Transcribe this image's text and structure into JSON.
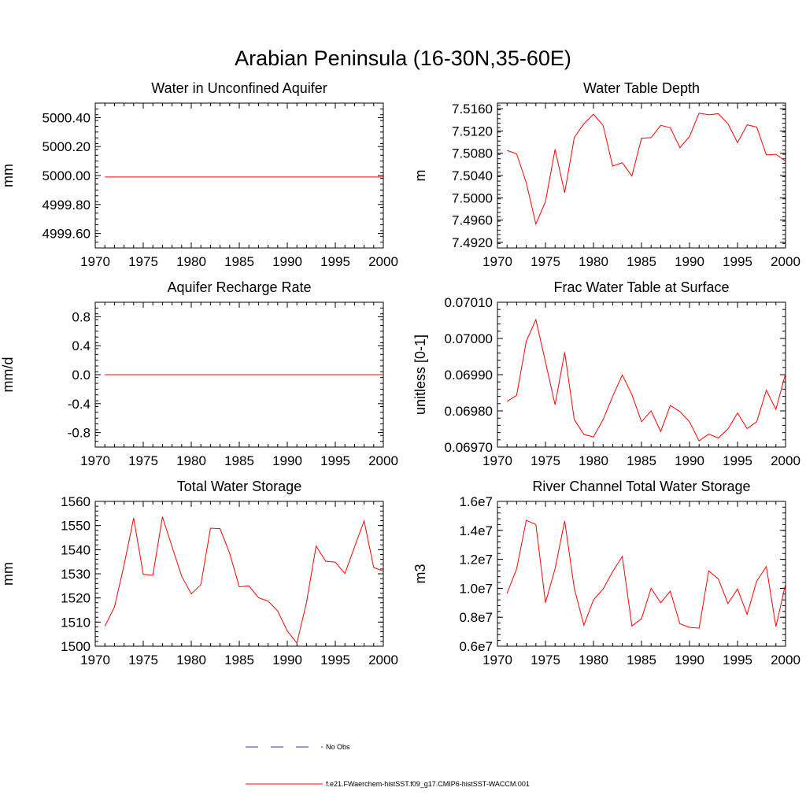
{
  "page": {
    "title": "Arabian Peninsula (16-30N,35-60E)"
  },
  "legend": {
    "entries": [
      {
        "label": "No Obs",
        "color": "#3333aa",
        "dash": "dashed"
      },
      {
        "label": "f.e21.FWaerchem-histSST.f09_g17.CMIP6-histSST-WACCM.001",
        "color": "#ff0000",
        "dash": "solid"
      }
    ]
  },
  "chart_data": [
    {
      "type": "line",
      "title": "Water in Unconfined Aquifer",
      "ylabel": "mm",
      "xlim": [
        1970,
        2000
      ],
      "ylim": [
        4999.5,
        5000.5
      ],
      "xticks": [
        1970,
        1975,
        1980,
        1985,
        1990,
        1995,
        2000
      ],
      "yticks": [
        4999.6,
        4999.8,
        5000.0,
        5000.2,
        5000.4
      ],
      "ytick_labels": [
        "4999.60",
        "4999.80",
        "5000.00",
        "5000.20",
        "5000.40"
      ],
      "x": [
        1971,
        1972,
        1973,
        1974,
        1975,
        1976,
        1977,
        1978,
        1979,
        1980,
        1981,
        1982,
        1983,
        1984,
        1985,
        1986,
        1987,
        1988,
        1989,
        1990,
        1991,
        1992,
        1993,
        1994,
        1995,
        1996,
        1997,
        1998,
        1999,
        2000
      ],
      "series": [
        {
          "color": "#ff0000",
          "values": [
            4999.99,
            4999.99,
            4999.99,
            4999.99,
            4999.99,
            4999.99,
            4999.99,
            4999.99,
            4999.99,
            4999.99,
            4999.99,
            4999.99,
            4999.99,
            4999.99,
            4999.99,
            4999.99,
            4999.99,
            4999.99,
            4999.99,
            4999.99,
            4999.99,
            4999.99,
            4999.99,
            4999.99,
            4999.99,
            4999.99,
            4999.99,
            4999.99,
            4999.99,
            4999.99
          ]
        }
      ]
    },
    {
      "type": "line",
      "title": "Water Table Depth",
      "ylabel": "m",
      "xlim": [
        1970,
        2000
      ],
      "ylim": [
        7.491,
        7.517
      ],
      "xticks": [
        1970,
        1975,
        1980,
        1985,
        1990,
        1995,
        2000
      ],
      "yticks": [
        7.492,
        7.496,
        7.5,
        7.504,
        7.508,
        7.512,
        7.516
      ],
      "ytick_labels": [
        "7.4920",
        "7.4960",
        "7.5000",
        "7.5040",
        "7.5080",
        "7.5120",
        "7.5160"
      ],
      "x": [
        1971,
        1972,
        1973,
        1974,
        1975,
        1976,
        1977,
        1978,
        1979,
        1980,
        1981,
        1982,
        1983,
        1984,
        1985,
        1986,
        1987,
        1988,
        1989,
        1990,
        1991,
        1992,
        1993,
        1994,
        1995,
        1996,
        1997,
        1998,
        1999,
        2000
      ],
      "series": [
        {
          "color": "#ff0000",
          "values": [
            7.5085,
            7.5079,
            7.5027,
            7.4953,
            7.4993,
            7.5087,
            7.5009,
            7.5108,
            7.5133,
            7.515,
            7.513,
            7.5057,
            7.5063,
            7.5039,
            7.5107,
            7.5108,
            7.513,
            7.5126,
            7.509,
            7.511,
            7.5152,
            7.5149,
            7.5151,
            7.5133,
            7.5099,
            7.5131,
            7.5127,
            7.5077,
            7.5078,
            7.5066
          ]
        }
      ]
    },
    {
      "type": "line",
      "title": "Aquifer Recharge Rate",
      "ylabel": "mm/d",
      "xlim": [
        1970,
        2000
      ],
      "ylim": [
        -1.0,
        1.0
      ],
      "xticks": [
        1970,
        1975,
        1980,
        1985,
        1990,
        1995,
        2000
      ],
      "yticks": [
        -0.8,
        -0.4,
        0.0,
        0.4,
        0.8
      ],
      "ytick_labels": [
        "-0.8",
        "-0.4",
        "0.0",
        "0.4",
        "0.8"
      ],
      "x": [
        1971,
        1972,
        1973,
        1974,
        1975,
        1976,
        1977,
        1978,
        1979,
        1980,
        1981,
        1982,
        1983,
        1984,
        1985,
        1986,
        1987,
        1988,
        1989,
        1990,
        1991,
        1992,
        1993,
        1994,
        1995,
        1996,
        1997,
        1998,
        1999,
        2000
      ],
      "series": [
        {
          "color": "#ff0000",
          "values": [
            0,
            0,
            0,
            0,
            0,
            0,
            0,
            0,
            0,
            0,
            0,
            0,
            0,
            0,
            0,
            0,
            0,
            0,
            0,
            0,
            0,
            0,
            0,
            0,
            0,
            0,
            0,
            0,
            0,
            0
          ]
        }
      ]
    },
    {
      "type": "line",
      "title": "Frac Water Table at Surface",
      "ylabel": "unitless [0-1]",
      "xlim": [
        1970,
        2000
      ],
      "ylim": [
        0.0697,
        0.0701
      ],
      "xticks": [
        1970,
        1975,
        1980,
        1985,
        1990,
        1995,
        2000
      ],
      "yticks": [
        0.0697,
        0.0698,
        0.0699,
        0.07,
        0.0701
      ],
      "ytick_labels": [
        "0.06970",
        "0.06980",
        "0.06990",
        "0.07000",
        "0.07010"
      ],
      "x": [
        1971,
        1972,
        1973,
        1974,
        1975,
        1976,
        1977,
        1978,
        1979,
        1980,
        1981,
        1982,
        1983,
        1984,
        1985,
        1986,
        1987,
        1988,
        1989,
        1990,
        1991,
        1992,
        1993,
        1994,
        1995,
        1996,
        1997,
        1998,
        1999,
        2000
      ],
      "series": [
        {
          "color": "#ff0000",
          "values": [
            0.069826,
            0.069843,
            0.069992,
            0.070052,
            0.069935,
            0.069817,
            0.069962,
            0.069776,
            0.069735,
            0.069728,
            0.069776,
            0.06984,
            0.069899,
            0.069845,
            0.06977,
            0.0698,
            0.069743,
            0.069815,
            0.069798,
            0.06977,
            0.069717,
            0.069736,
            0.069725,
            0.06975,
            0.069794,
            0.069751,
            0.06977,
            0.069857,
            0.069804,
            0.069903
          ]
        }
      ]
    },
    {
      "type": "line",
      "title": "Total Water Storage",
      "ylabel": "mm",
      "xlim": [
        1970,
        2000
      ],
      "ylim": [
        1500,
        1560
      ],
      "xticks": [
        1970,
        1975,
        1980,
        1985,
        1990,
        1995,
        2000
      ],
      "yticks": [
        1500,
        1510,
        1520,
        1530,
        1540,
        1550,
        1560
      ],
      "ytick_labels": [
        "1500",
        "1510",
        "1520",
        "1530",
        "1540",
        "1550",
        "1560"
      ],
      "x": [
        1971,
        1972,
        1973,
        1974,
        1975,
        1976,
        1977,
        1978,
        1979,
        1980,
        1981,
        1982,
        1983,
        1984,
        1985,
        1986,
        1987,
        1988,
        1989,
        1990,
        1991,
        1992,
        1993,
        1994,
        1995,
        1996,
        1997,
        1998,
        1999,
        2000
      ],
      "series": [
        {
          "color": "#ff0000",
          "values": [
            1508.3,
            1516.2,
            1533.6,
            1553.1,
            1529.8,
            1529.4,
            1553.6,
            1541.2,
            1529.0,
            1521.7,
            1525.5,
            1548.9,
            1548.7,
            1538.5,
            1524.6,
            1525.0,
            1520.1,
            1518.7,
            1514.6,
            1506.3,
            1501.3,
            1518.1,
            1541.5,
            1535.2,
            1534.8,
            1530.1,
            1541.1,
            1551.9,
            1532.6,
            1531.1
          ]
        }
      ]
    },
    {
      "type": "line",
      "title": "River Channel Total Water Storage",
      "ylabel": "m3",
      "xlim": [
        1970,
        2000
      ],
      "ylim": [
        6000000,
        16000000
      ],
      "xticks": [
        1970,
        1975,
        1980,
        1985,
        1990,
        1995,
        2000
      ],
      "yticks": [
        6000000,
        8000000,
        10000000,
        12000000,
        14000000,
        16000000
      ],
      "ytick_labels": [
        "0.6e7",
        "0.8e7",
        "1.0e7",
        "1.2e7",
        "1.4e7",
        "1.6e7"
      ],
      "x": [
        1971,
        1972,
        1973,
        1974,
        1975,
        1976,
        1977,
        1978,
        1979,
        1980,
        1981,
        1982,
        1983,
        1984,
        1985,
        1986,
        1987,
        1988,
        1989,
        1990,
        1991,
        1992,
        1993,
        1994,
        1995,
        1996,
        1997,
        1998,
        1999,
        2000
      ],
      "series": [
        {
          "color": "#ff0000",
          "values": [
            9650000,
            11350000,
            14700000,
            14400000,
            9000000,
            11350000,
            14650000,
            10000000,
            7450000,
            9200000,
            9950000,
            11150000,
            12200000,
            7400000,
            7900000,
            10000000,
            9000000,
            9800000,
            7550000,
            7300000,
            7250000,
            11200000,
            10650000,
            8950000,
            9950000,
            8200000,
            10500000,
            11500000,
            7350000,
            10300000
          ]
        }
      ]
    }
  ]
}
